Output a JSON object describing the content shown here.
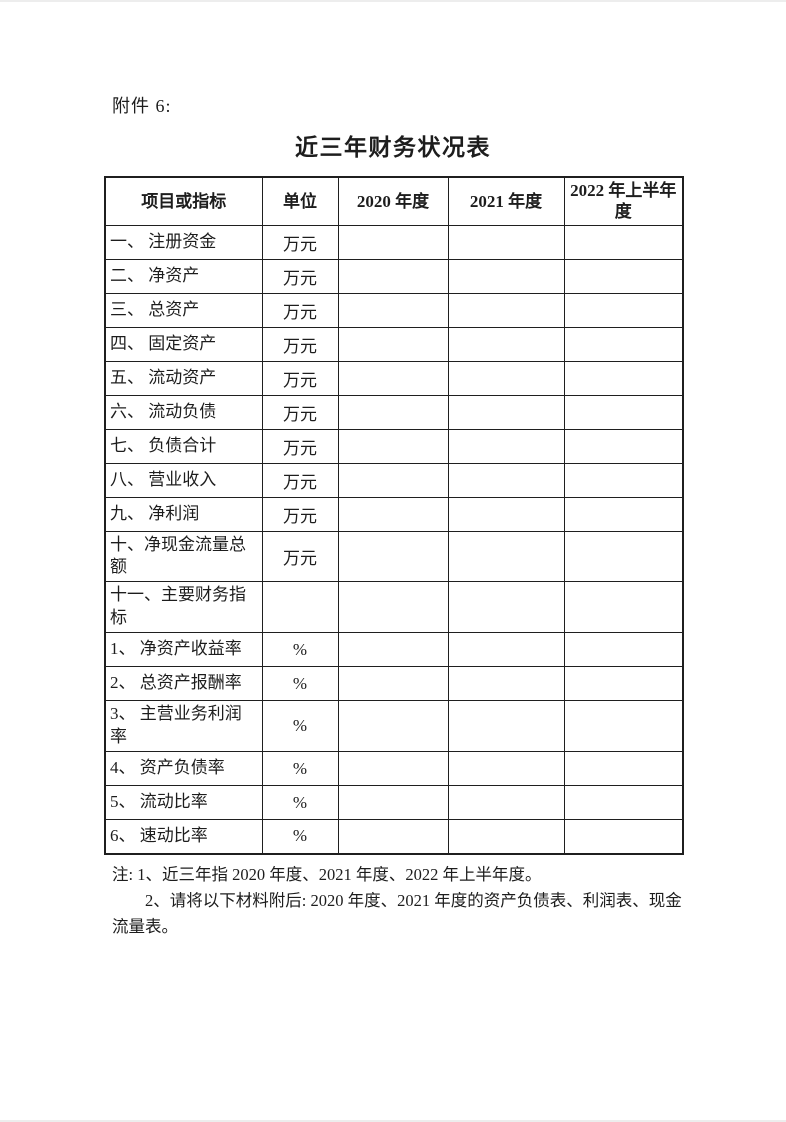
{
  "page": {
    "attachment_label": "附件 6:",
    "title": "近三年财务状况表"
  },
  "table": {
    "headers": [
      "项目或指标",
      "单位",
      "2020 年度",
      "2021 年度",
      "2022 年上半年度"
    ],
    "rows": [
      {
        "item": "一、 注册资金",
        "unit": "万元",
        "v2020": "",
        "v2021": "",
        "v2022": ""
      },
      {
        "item": "二、 净资产",
        "unit": "万元",
        "v2020": "",
        "v2021": "",
        "v2022": ""
      },
      {
        "item": "三、 总资产",
        "unit": "万元",
        "v2020": "",
        "v2021": "",
        "v2022": ""
      },
      {
        "item": "四、 固定资产",
        "unit": "万元",
        "v2020": "",
        "v2021": "",
        "v2022": ""
      },
      {
        "item": "五、 流动资产",
        "unit": "万元",
        "v2020": "",
        "v2021": "",
        "v2022": ""
      },
      {
        "item": "六、 流动负债",
        "unit": "万元",
        "v2020": "",
        "v2021": "",
        "v2022": ""
      },
      {
        "item": "七、 负债合计",
        "unit": "万元",
        "v2020": "",
        "v2021": "",
        "v2022": ""
      },
      {
        "item": "八、 营业收入",
        "unit": "万元",
        "v2020": "",
        "v2021": "",
        "v2022": ""
      },
      {
        "item": "九、 净利润",
        "unit": "万元",
        "v2020": "",
        "v2021": "",
        "v2022": ""
      },
      {
        "item": "十、净现金流量总额",
        "unit": "万元",
        "v2020": "",
        "v2021": "",
        "v2022": ""
      },
      {
        "item": "十一、主要财务指标",
        "unit": "",
        "v2020": "",
        "v2021": "",
        "v2022": ""
      },
      {
        "item": "1、 净资产收益率",
        "unit": "%",
        "v2020": "",
        "v2021": "",
        "v2022": ""
      },
      {
        "item": "2、 总资产报酬率",
        "unit": "%",
        "v2020": "",
        "v2021": "",
        "v2022": ""
      },
      {
        "item": "3、 主营业务利润率",
        "unit": "%",
        "v2020": "",
        "v2021": "",
        "v2022": ""
      },
      {
        "item": "4、 资产负债率",
        "unit": "%",
        "v2020": "",
        "v2021": "",
        "v2022": ""
      },
      {
        "item": "5、 流动比率",
        "unit": "%",
        "v2020": "",
        "v2021": "",
        "v2022": ""
      },
      {
        "item": "6、 速动比率",
        "unit": "%",
        "v2020": "",
        "v2021": "",
        "v2022": ""
      }
    ]
  },
  "notes": {
    "label": "注:",
    "items": [
      "1、近三年指 2020 年度、2021 年度、2022 年上半年度。",
      "2、请将以下材料附后: 2020 年度、2021 年度的资产负债表、利润表、现金流量表。"
    ]
  }
}
